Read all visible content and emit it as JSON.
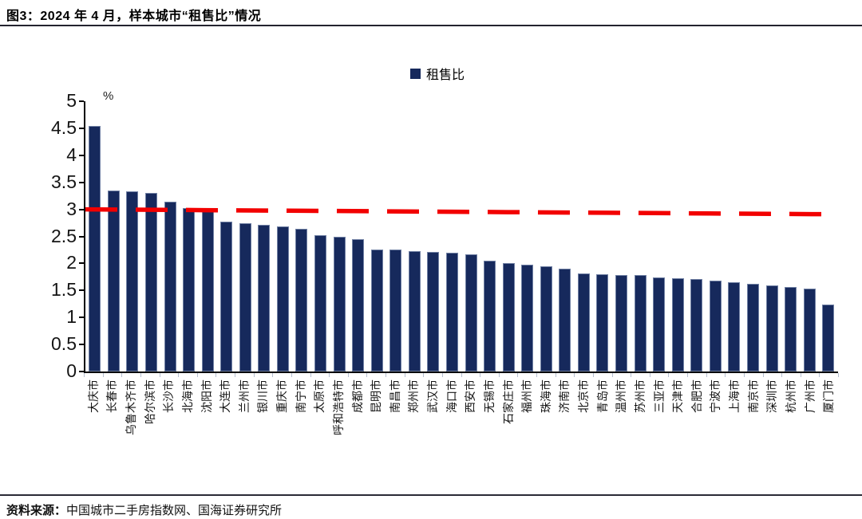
{
  "header": {
    "title": "图3：2024 年 4 月，样本城市“租售比”情况"
  },
  "legend": {
    "label": "租售比"
  },
  "footer": {
    "source_label": "资料来源：",
    "source_text": "中国城市二手房指数网、国海证券研究所"
  },
  "colors": {
    "bar": "#16295c",
    "reference_line": "#f20000",
    "axis": "#000000",
    "x_tick": "#b6bfd0"
  },
  "chart_data": {
    "type": "bar",
    "title": "2024年4月样本城市租售比",
    "unit_label": "%",
    "legend_entries": [
      "租售比"
    ],
    "legend_position": "top-center",
    "grid": false,
    "xlabel": "",
    "ylabel": "%",
    "ylim": [
      0,
      5
    ],
    "ytick_labels": [
      "0",
      "0.5",
      "1",
      "1.5",
      "2",
      "2.5",
      "3",
      "3.5",
      "4",
      "4.5",
      "5"
    ],
    "xtick_rotation": 90,
    "categories": [
      "大庆市",
      "长春市",
      "乌鲁木齐市",
      "哈尔滨市",
      "长沙市",
      "北海市",
      "沈阳市",
      "大连市",
      "兰州市",
      "银川市",
      "重庆市",
      "南宁市",
      "太原市",
      "呼和浩特市",
      "成都市",
      "昆明市",
      "南昌市",
      "郑州市",
      "武汉市",
      "海口市",
      "西安市",
      "无锡市",
      "石家庄市",
      "福州市",
      "珠海市",
      "济南市",
      "北京市",
      "青岛市",
      "温州市",
      "苏州市",
      "三亚市",
      "天津市",
      "合肥市",
      "宁波市",
      "上海市",
      "南京市",
      "深圳市",
      "杭州市",
      "广州市",
      "厦门市"
    ],
    "values": [
      4.55,
      3.35,
      3.34,
      3.31,
      3.14,
      3.02,
      3.0,
      2.78,
      2.75,
      2.72,
      2.68,
      2.64,
      2.53,
      2.5,
      2.45,
      2.26,
      2.25,
      2.23,
      2.22,
      2.2,
      2.17,
      2.05,
      2.0,
      1.97,
      1.95,
      1.9,
      1.82,
      1.8,
      1.79,
      1.78,
      1.74,
      1.73,
      1.71,
      1.68,
      1.65,
      1.62,
      1.6,
      1.56,
      1.53,
      1.24
    ],
    "reference_line": {
      "style": "dashed",
      "color": "#f20000",
      "start_value": 3.0,
      "end_value": 2.91
    }
  }
}
